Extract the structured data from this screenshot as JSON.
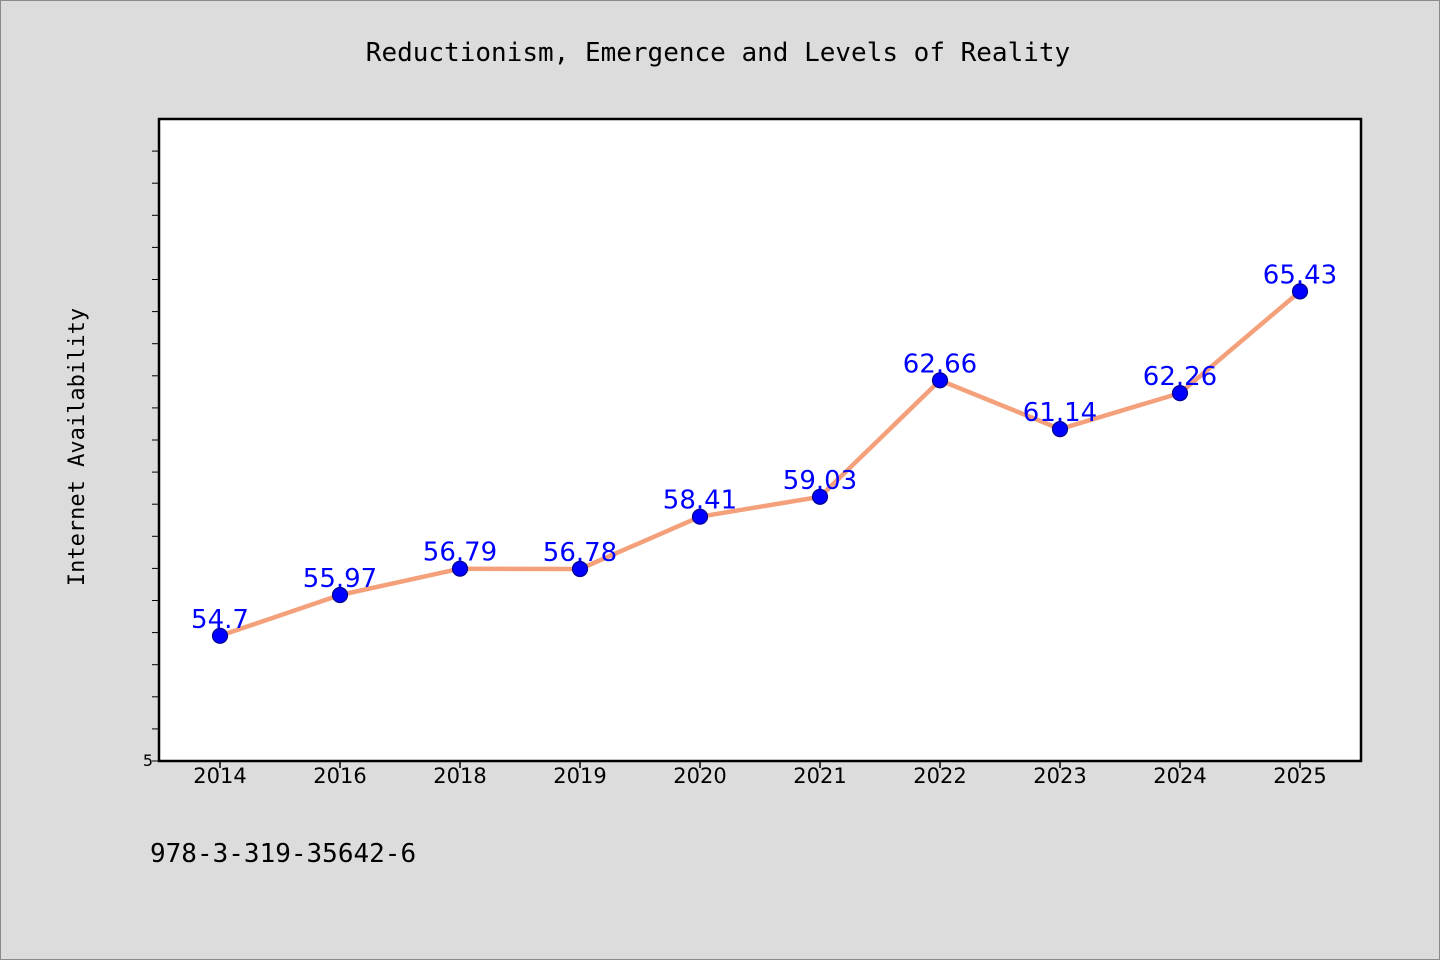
{
  "chart_data": {
    "type": "line",
    "title": "Reductionism, Emergence and Levels of Reality",
    "xlabel": "",
    "ylabel": "Internet Availability",
    "categories": [
      "2014",
      "2016",
      "2018",
      "2019",
      "2020",
      "2021",
      "2022",
      "2023",
      "2024",
      "2025"
    ],
    "series": [
      {
        "values": [
          54.7,
          55.97,
          56.79,
          56.78,
          58.41,
          59.03,
          62.66,
          61.14,
          62.26,
          65.43
        ],
        "labels": [
          "54.7",
          "55.97",
          "56.79",
          "56.78",
          "58.41",
          "59.03",
          "62.66",
          "61.14",
          "62.26",
          "65.43"
        ]
      }
    ],
    "y_tick_labels": [
      "5"
    ],
    "ylim": [
      50.8,
      70.8
    ],
    "grid": false,
    "legend": "none",
    "colors": {
      "line": "#f4a07a",
      "marker": "#0000ff",
      "marker_edge": "#00008b",
      "data_label": "#0000ff",
      "plot_background": "#ffffff",
      "figure_background": "#dcdcdc"
    }
  },
  "footer": {
    "isbn": "978-3-319-35642-6"
  }
}
